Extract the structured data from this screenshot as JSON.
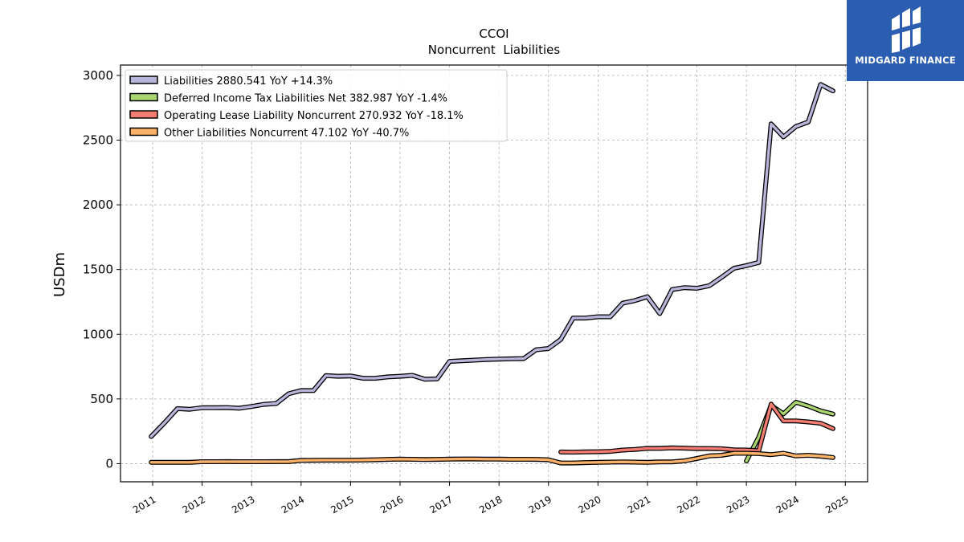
{
  "brand": {
    "name": "MIDGARD FINANCE",
    "color": "#2b5db1"
  },
  "chart_data": {
    "type": "line",
    "title": "CCOI",
    "subtitle": "Noncurrent  Liabilities",
    "xlabel": "",
    "ylabel": "USDm",
    "xlim": [
      2010.35,
      2025.45
    ],
    "ylim": [
      -140,
      3080
    ],
    "x_ticks": [
      "2011",
      "2012",
      "2013",
      "2014",
      "2015",
      "2016",
      "2017",
      "2018",
      "2019",
      "2020",
      "2021",
      "2022",
      "2023",
      "2024",
      "2025"
    ],
    "y_ticks": [
      0,
      500,
      1000,
      1500,
      2000,
      2500,
      3000
    ],
    "grid": true,
    "legend_position": "top-left",
    "series": [
      {
        "name": "Liabilities",
        "legend": "Liabilities  2880.541 YoY +14.3%",
        "color": "#b7b5d9",
        "x": [
          2010.97,
          2011.25,
          2011.5,
          2011.75,
          2012.0,
          2012.25,
          2012.5,
          2012.75,
          2013.0,
          2013.25,
          2013.5,
          2013.75,
          2014.0,
          2014.25,
          2014.5,
          2014.75,
          2015.0,
          2015.25,
          2015.5,
          2015.75,
          2016.0,
          2016.25,
          2016.5,
          2016.75,
          2017.0,
          2017.25,
          2017.5,
          2017.75,
          2018.0,
          2018.25,
          2018.5,
          2018.75,
          2019.0,
          2019.25,
          2019.5,
          2019.75,
          2020.0,
          2020.25,
          2020.5,
          2020.75,
          2021.0,
          2021.25,
          2021.5,
          2021.75,
          2022.0,
          2022.25,
          2022.5,
          2022.75,
          2023.0,
          2023.25,
          2023.5,
          2023.75,
          2024.0,
          2024.25,
          2024.5,
          2024.75
        ],
        "values": [
          210,
          320,
          425,
          420,
          432,
          432,
          433,
          428,
          442,
          458,
          465,
          540,
          565,
          565,
          680,
          675,
          678,
          660,
          660,
          670,
          675,
          682,
          652,
          655,
          790,
          795,
          800,
          805,
          808,
          810,
          812,
          880,
          890,
          960,
          1125,
          1125,
          1135,
          1135,
          1240,
          1260,
          1290,
          1160,
          1345,
          1360,
          1355,
          1375,
          1440,
          1510,
          1530,
          1555,
          2625,
          2525,
          2605,
          2640,
          2930,
          2880
        ]
      },
      {
        "name": "Deferred Income Tax Liabilities Net",
        "legend": "Deferred Income Tax Liabilities Net  382.987 YoY -1.4%",
        "color": "#a9d46f",
        "x": [
          2023.0,
          2023.25,
          2023.5,
          2023.75,
          2024.0,
          2024.25,
          2024.5,
          2024.75
        ],
        "values": [
          20,
          205,
          450,
          385,
          475,
          445,
          408,
          382.987
        ]
      },
      {
        "name": "Operating Lease Liability Noncurrent",
        "legend": "Operating Lease Liability Noncurrent  270.932 YoY -18.1%",
        "color": "#f47c72",
        "x": [
          2019.25,
          2019.5,
          2019.75,
          2020.0,
          2020.25,
          2020.5,
          2020.75,
          2021.0,
          2021.25,
          2021.5,
          2021.75,
          2022.0,
          2022.25,
          2022.5,
          2022.75,
          2023.0,
          2023.25,
          2023.5,
          2023.75,
          2024.0,
          2024.25,
          2024.5,
          2024.75
        ],
        "values": [
          90,
          89,
          91,
          92,
          95,
          105,
          110,
          118,
          118,
          122,
          120,
          117,
          117,
          115,
          107,
          105,
          100,
          460,
          330,
          330,
          322,
          312,
          270.932
        ]
      },
      {
        "name": "Other Liabilities Noncurrent",
        "legend": "Other Liabilities Noncurrent  47.102 YoY -40.7%",
        "color": "#fbb266",
        "x": [
          2010.97,
          2011.25,
          2011.5,
          2011.75,
          2012.0,
          2012.25,
          2012.5,
          2012.75,
          2013.0,
          2013.25,
          2013.5,
          2013.75,
          2014.0,
          2014.25,
          2014.5,
          2014.75,
          2015.0,
          2015.25,
          2015.5,
          2015.75,
          2016.0,
          2016.25,
          2016.5,
          2016.75,
          2017.0,
          2017.25,
          2017.5,
          2017.75,
          2018.0,
          2018.25,
          2018.5,
          2018.75,
          2019.0,
          2019.25,
          2019.5,
          2019.75,
          2020.0,
          2020.25,
          2020.5,
          2020.75,
          2021.0,
          2021.25,
          2021.5,
          2021.75,
          2022.0,
          2022.25,
          2022.5,
          2022.75,
          2023.0,
          2023.25,
          2023.5,
          2023.75,
          2024.0,
          2024.25,
          2024.5,
          2024.75
        ],
        "values": [
          10,
          10,
          10,
          10,
          15,
          15,
          16,
          15,
          15,
          15,
          16,
          16,
          25,
          26,
          27,
          27,
          27,
          28,
          30,
          33,
          35,
          34,
          32,
          33,
          35,
          36,
          36,
          35,
          35,
          34,
          34,
          33,
          30,
          5,
          5,
          8,
          10,
          12,
          14,
          12,
          10,
          13,
          14,
          22,
          40,
          60,
          65,
          80,
          80,
          78,
          70,
          80,
          60,
          65,
          58,
          47.102
        ]
      }
    ]
  }
}
